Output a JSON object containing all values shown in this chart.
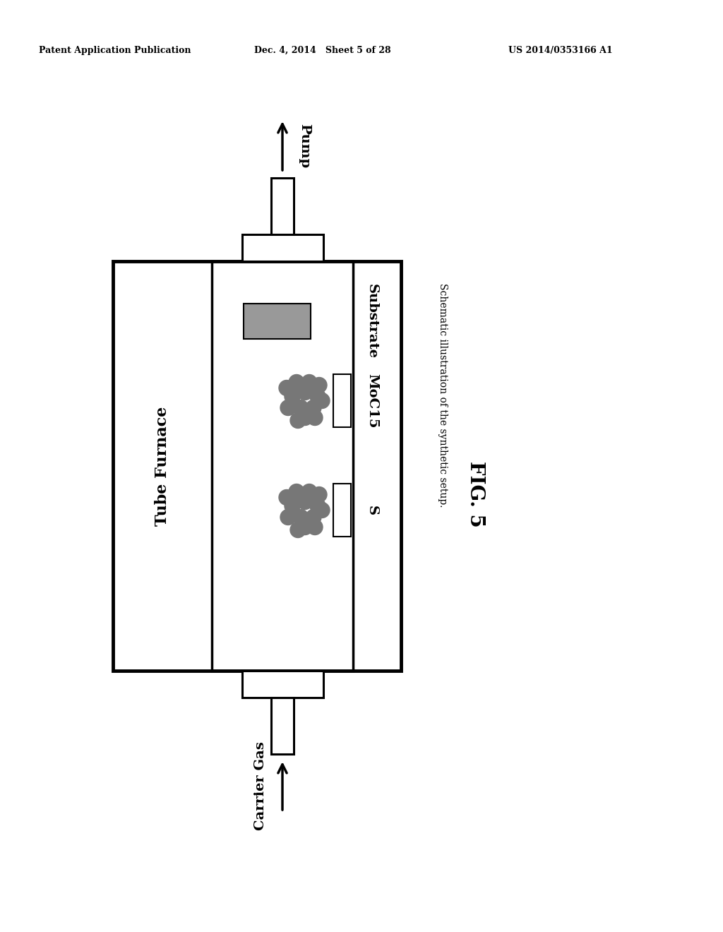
{
  "header_left": "Patent Application Publication",
  "header_mid": "Dec. 4, 2014   Sheet 5 of 28",
  "header_right": "US 2014/0353166 A1",
  "tube_furnace_label": "Tube Furnace",
  "substrate_label": "Substrate",
  "moc15_label": "MoC15",
  "s_label": "S",
  "pump_label": "Pump",
  "carrier_gas_label": "Carrier Gas",
  "fig_label": "FIG. 5",
  "caption": "Schematic illustration of the synthetic setup.",
  "bg_color": "#ffffff",
  "line_color": "#000000",
  "gray_color": "#999999",
  "granule_color": "#777777"
}
